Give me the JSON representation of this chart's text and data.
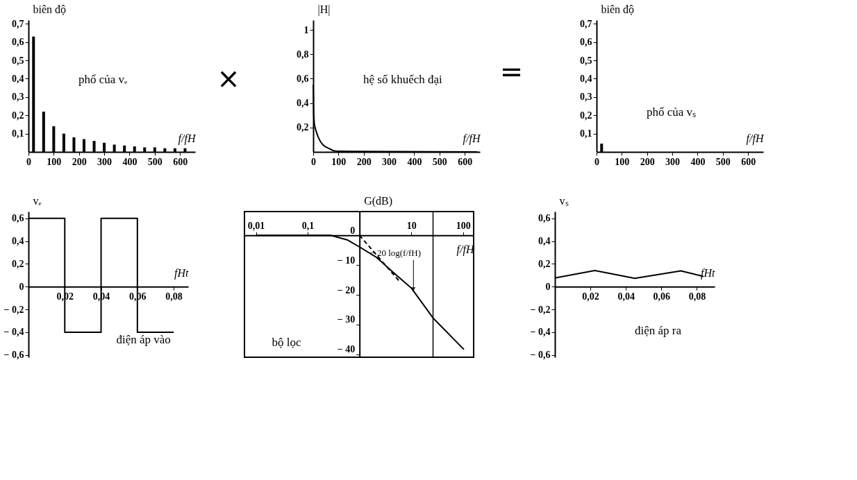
{
  "chart_data": [
    {
      "type": "bar",
      "ylabel": "biên độ",
      "xlabel": "f/fH",
      "annotations": [
        "phổ của vₑ",
        "×"
      ],
      "x": [
        20,
        60,
        100,
        140,
        180,
        220,
        260,
        300,
        340,
        380,
        420,
        460,
        500,
        540,
        580,
        620
      ],
      "values": [
        0.63,
        0.22,
        0.14,
        0.1,
        0.08,
        0.07,
        0.06,
        0.05,
        0.04,
        0.035,
        0.03,
        0.025,
        0.025,
        0.02,
        0.02,
        0.02
      ],
      "color": "#000000",
      "xlim": [
        0,
        660
      ],
      "xticks": [
        0,
        100,
        200,
        300,
        400,
        500,
        600
      ],
      "ylim": [
        0,
        0.72
      ],
      "yticks": [
        {
          "value": 0.1,
          "label": "0,1"
        },
        {
          "value": 0.2,
          "label": "0,2"
        },
        {
          "value": 0.3,
          "label": "0,3"
        },
        {
          "value": 0.4,
          "label": "0,4"
        },
        {
          "value": 0.5,
          "label": "0,5"
        },
        {
          "value": 0.6,
          "label": "0,6"
        },
        {
          "value": 0.7,
          "label": "0,7"
        }
      ]
    },
    {
      "type": "line",
      "ylabel": "|H|",
      "xlabel": "f/fH",
      "annotations": [
        "hệ số khuếch đại",
        "="
      ],
      "x": [
        0,
        2,
        5,
        10,
        20,
        30,
        40,
        50,
        60,
        80,
        100,
        650
      ],
      "values": [
        0.55,
        0.3,
        0.22,
        0.18,
        0.12,
        0.08,
        0.055,
        0.04,
        0.03,
        0.01,
        0.005,
        0
      ],
      "color": "#000000",
      "xlim": [
        0,
        660
      ],
      "xticks": [
        0,
        100,
        200,
        300,
        400,
        500,
        600
      ],
      "ylim": [
        0,
        1.08
      ],
      "yticks": [
        {
          "value": 0.2,
          "label": "0,2"
        },
        {
          "value": 0.4,
          "label": "0,4"
        },
        {
          "value": 0.6,
          "label": "0,6"
        },
        {
          "value": 0.8,
          "label": "0,8"
        },
        1
      ]
    },
    {
      "type": "bar",
      "ylabel": "biên độ",
      "xlabel": "f/fH",
      "annotations": [
        "phổ của vₛ"
      ],
      "x": [
        20
      ],
      "values": [
        0.045
      ],
      "color": "#000000",
      "xlim": [
        0,
        660
      ],
      "xticks": [
        0,
        100,
        200,
        300,
        400,
        500,
        600
      ],
      "ylim": [
        0,
        0.72
      ],
      "yticks": [
        {
          "value": 0.1,
          "label": "0,1"
        },
        {
          "value": 0.2,
          "label": "0,2"
        },
        {
          "value": 0.3,
          "label": "0,3"
        },
        {
          "value": 0.4,
          "label": "0,4"
        },
        {
          "value": 0.5,
          "label": "0,5"
        },
        {
          "value": 0.6,
          "label": "0,6"
        },
        {
          "value": 0.7,
          "label": "0,7"
        }
      ]
    },
    {
      "type": "line",
      "ylabel": "vₑ",
      "xlabel": "fHt",
      "annotations": [
        "điện áp vào"
      ],
      "x": [
        0,
        0.02,
        0.02,
        0.04,
        0.04,
        0.06,
        0.06,
        0.08
      ],
      "values": [
        0.6,
        0.6,
        -0.4,
        -0.4,
        0.6,
        0.6,
        -0.4,
        -0.4
      ],
      "color": "#000000",
      "xlim": [
        0,
        0.088
      ],
      "xticks": [
        {
          "value": 0.02,
          "label": "0,02"
        },
        {
          "value": 0.04,
          "label": "0,04"
        },
        {
          "value": 0.06,
          "label": "0,06"
        },
        {
          "value": 0.08,
          "label": "0,08"
        }
      ],
      "ylim": [
        -0.62,
        0.66
      ],
      "yticks": [
        {
          "value": -0.6,
          "label": "− 0,6"
        },
        {
          "value": -0.4,
          "label": "− 0,4"
        },
        {
          "value": -0.2,
          "label": "− 0,2"
        },
        0,
        {
          "value": 0.2,
          "label": "0,2"
        },
        {
          "value": 0.4,
          "label": "0,4"
        },
        {
          "value": 0.6,
          "label": "0,6"
        }
      ]
    },
    {
      "type": "line",
      "ylabel": "G(dB)",
      "xlabel": "f/fH",
      "log": "x",
      "annotations": [
        {
          "text": "− 20 log(f/fH)",
          "x": 11,
          "y": -19
        },
        "bộ lọc"
      ],
      "series": [
        {
          "color": "#000000",
          "x": [
            0.01,
            0.275,
            0.575,
            1,
            2.09,
            4.37,
            10,
            26.3,
            104
          ],
          "values": [
            0,
            0,
            -1.5,
            -3.9,
            -7.3,
            -12.3,
            -17.7,
            -27.8,
            -38.4
          ]
        },
        {
          "color": "#000000",
          "line_style": "dashed",
          "x": [
            1,
            6
          ],
          "values": [
            0,
            -15.6
          ]
        }
      ],
      "ref_lines": [
        {
          "axis": "x",
          "value": 26.3,
          "color": "#000000"
        }
      ],
      "xlim": [
        0.006,
        160
      ],
      "xticks": [
        {
          "value": 0.01,
          "label": "0,01"
        },
        {
          "value": 0.1,
          "label": "0,1"
        },
        {
          "value": 1,
          "label": null
        },
        10,
        100
      ],
      "ylim": [
        -41,
        8
      ],
      "yticks": [
        {
          "value": -40,
          "label": "− 40"
        },
        {
          "value": -30,
          "label": "− 30"
        },
        {
          "value": -20,
          "label": "− 20"
        },
        {
          "value": -10,
          "label": "− 10"
        },
        0
      ]
    },
    {
      "type": "line",
      "ylabel": "vₛ",
      "xlabel": "fHt",
      "annotations": [
        "điện áp ra"
      ],
      "x": [
        0,
        0.0225,
        0.045,
        0.071,
        0.0837
      ],
      "values": [
        0.076,
        0.142,
        0.073,
        0.139,
        0.09
      ],
      "color": "#000000",
      "xlim": [
        0,
        0.09
      ],
      "xticks": [
        {
          "value": 0.02,
          "label": "0,02"
        },
        {
          "value": 0.04,
          "label": "0,04"
        },
        {
          "value": 0.06,
          "label": "0,06"
        },
        {
          "value": 0.08,
          "label": "0,08"
        }
      ],
      "ylim": [
        -0.62,
        0.66
      ],
      "yticks": [
        {
          "value": -0.6,
          "label": "− 0,6"
        },
        {
          "value": -0.4,
          "label": "− 0,4"
        },
        {
          "value": -0.2,
          "label": "− 0,2"
        },
        0,
        {
          "value": 0.2,
          "label": "0,2"
        },
        {
          "value": 0.4,
          "label": "0,4"
        },
        {
          "value": 0.6,
          "label": "0,6"
        }
      ]
    }
  ]
}
